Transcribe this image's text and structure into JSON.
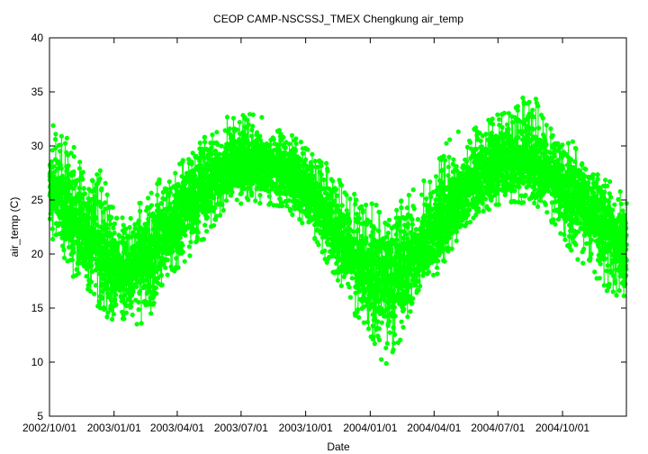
{
  "chart_data": {
    "type": "scatter",
    "title": "CEOP CAMP-NSCSSJ_TMEX Chengkung  air_temp",
    "xlabel": "Date",
    "ylabel": "air_temp (C)",
    "ylim": [
      5,
      40
    ],
    "yticks": [
      "5",
      "10",
      "15",
      "20",
      "25",
      "30",
      "35",
      "40"
    ],
    "xlim": [
      "2002-10-01",
      "2004-12-31"
    ],
    "xticks": [
      {
        "date": "2002-10-01",
        "label": "2002/10/01"
      },
      {
        "date": "2003-01-01",
        "label": "2003/01/01"
      },
      {
        "date": "2003-04-01",
        "label": "2003/04/01"
      },
      {
        "date": "2003-07-01",
        "label": "2003/07/01"
      },
      {
        "date": "2003-10-01",
        "label": "2003/10/01"
      },
      {
        "date": "2004-01-01",
        "label": "2004/01/01"
      },
      {
        "date": "2004-04-01",
        "label": "2004/04/01"
      },
      {
        "date": "2004-07-01",
        "label": "2004/07/01"
      },
      {
        "date": "2004-10-01",
        "label": "2004/10/01"
      }
    ],
    "grid": false,
    "legend": "none",
    "color": "#00ff00",
    "series": [
      {
        "x": [
          "2002-10-01",
          "2002-10-15",
          "2002-11-01",
          "2002-11-15",
          "2002-12-01",
          "2002-12-15",
          "2003-01-01",
          "2003-01-15",
          "2003-02-01",
          "2003-02-15",
          "2003-03-01",
          "2003-03-15",
          "2003-04-01",
          "2003-04-15",
          "2003-05-01",
          "2003-05-15",
          "2003-06-01",
          "2003-06-15",
          "2003-07-01",
          "2003-07-15",
          "2003-08-01",
          "2003-08-15",
          "2003-09-01",
          "2003-09-15",
          "2003-10-01",
          "2003-10-15",
          "2003-11-01",
          "2003-11-15",
          "2003-12-01",
          "2003-12-15",
          "2004-01-01",
          "2004-01-15",
          "2004-02-01",
          "2004-02-15",
          "2004-03-01",
          "2004-03-15",
          "2004-04-01",
          "2004-04-15",
          "2004-05-01",
          "2004-05-15",
          "2004-06-01",
          "2004-06-15",
          "2004-07-01",
          "2004-07-15",
          "2004-08-01",
          "2004-08-15",
          "2004-09-01",
          "2004-09-15",
          "2004-10-01",
          "2004-10-15",
          "2004-11-01",
          "2004-11-15",
          "2004-12-01",
          "2004-12-15",
          "2004-12-31"
        ],
        "y_mean": [
          26.0,
          25.5,
          24.0,
          22.5,
          21.0,
          20.0,
          19.0,
          18.5,
          19.0,
          19.5,
          20.5,
          22.0,
          23.5,
          24.5,
          25.5,
          26.5,
          27.5,
          28.5,
          28.5,
          28.5,
          28.5,
          28.0,
          27.5,
          27.0,
          26.0,
          25.0,
          23.0,
          22.0,
          20.5,
          19.0,
          18.5,
          17.5,
          17.5,
          18.5,
          19.5,
          21.0,
          22.0,
          23.5,
          25.0,
          26.0,
          27.0,
          27.5,
          28.5,
          28.5,
          28.5,
          29.0,
          28.0,
          27.5,
          26.0,
          25.5,
          24.5,
          23.5,
          22.5,
          21.5,
          20.5
        ],
        "y_min": [
          21.0,
          21.0,
          17.5,
          16.0,
          15.0,
          14.5,
          13.5,
          14.0,
          13.5,
          13.5,
          15.5,
          17.0,
          18.0,
          19.5,
          20.5,
          22.0,
          23.0,
          24.5,
          24.5,
          25.0,
          24.5,
          24.5,
          24.0,
          23.5,
          22.5,
          21.0,
          19.0,
          17.5,
          16.0,
          13.5,
          11.5,
          10.0,
          9.5,
          12.5,
          15.0,
          17.0,
          17.5,
          19.0,
          21.0,
          22.5,
          23.5,
          24.0,
          24.5,
          24.5,
          24.5,
          25.0,
          24.0,
          23.0,
          20.5,
          19.5,
          19.0,
          18.0,
          16.5,
          15.5,
          14.5
        ],
        "y_max": [
          32.5,
          31.5,
          30.5,
          28.5,
          28.0,
          28.0,
          24.0,
          23.5,
          24.5,
          25.5,
          27.0,
          27.5,
          28.0,
          29.5,
          30.5,
          31.0,
          31.5,
          33.5,
          33.0,
          33.0,
          33.0,
          32.0,
          31.5,
          31.0,
          30.0,
          29.5,
          28.5,
          27.0,
          26.0,
          26.5,
          25.5,
          24.0,
          24.0,
          25.0,
          26.0,
          27.0,
          28.0,
          30.0,
          31.5,
          32.5,
          32.0,
          32.5,
          33.0,
          33.5,
          34.5,
          35.2,
          33.5,
          32.0,
          31.0,
          30.5,
          28.5,
          27.5,
          27.0,
          26.5,
          25.5
        ]
      }
    ]
  }
}
